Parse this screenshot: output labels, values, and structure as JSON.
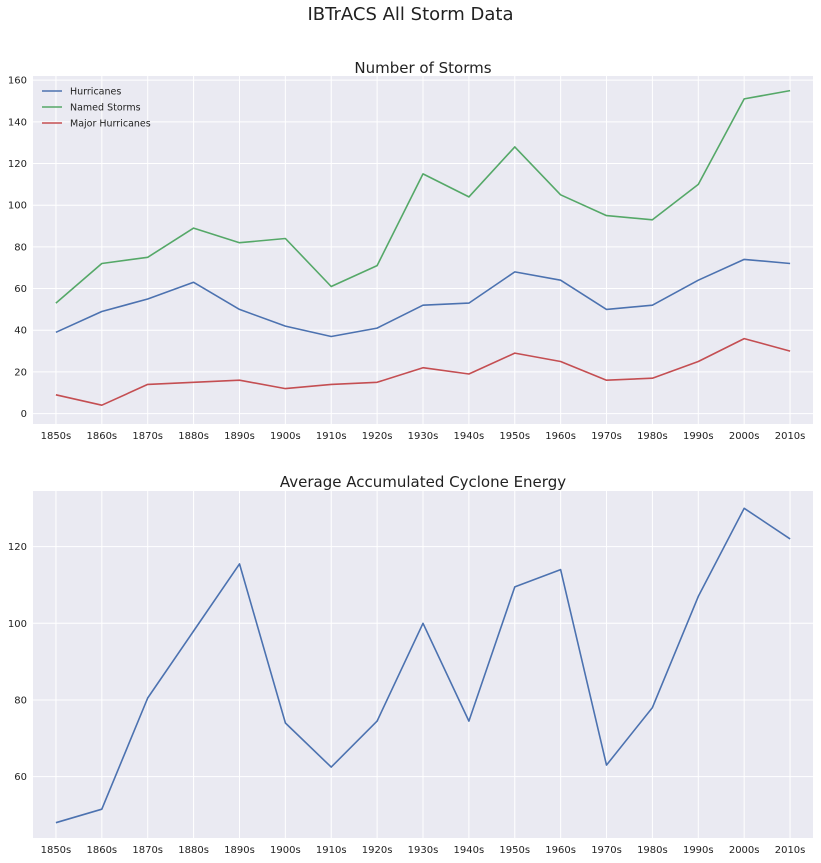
{
  "figure": {
    "title": "IBTrACS All Storm Data"
  },
  "colors": {
    "blue": "#4c72b0",
    "green": "#55a868",
    "red": "#c44e52",
    "background": "#eaeaf2",
    "grid": "#ffffff"
  },
  "chart_data": [
    {
      "type": "line",
      "title": "Number of Storms",
      "xlabel": "",
      "ylabel": "",
      "categories": [
        "1850s",
        "1860s",
        "1870s",
        "1880s",
        "1890s",
        "1900s",
        "1910s",
        "1920s",
        "1930s",
        "1940s",
        "1950s",
        "1960s",
        "1970s",
        "1980s",
        "1990s",
        "2000s",
        "2010s"
      ],
      "ylim": [
        -5,
        162
      ],
      "yticks": [
        0,
        20,
        40,
        60,
        80,
        100,
        120,
        140,
        160
      ],
      "grid": true,
      "legend_position": "top-left",
      "series": [
        {
          "name": "Hurricanes",
          "color": "#4c72b0",
          "values": [
            39,
            49,
            55,
            63,
            50,
            42,
            37,
            41,
            52,
            53,
            68,
            64,
            50,
            52,
            64,
            74,
            72
          ]
        },
        {
          "name": "Named Storms",
          "color": "#55a868",
          "values": [
            53,
            72,
            75,
            89,
            82,
            84,
            61,
            71,
            115,
            104,
            128,
            105,
            95,
            93,
            110,
            151,
            155
          ]
        },
        {
          "name": "Major Hurricanes",
          "color": "#c44e52",
          "values": [
            9,
            4,
            14,
            15,
            16,
            12,
            14,
            15,
            22,
            19,
            29,
            25,
            16,
            17,
            25,
            36,
            30
          ]
        }
      ]
    },
    {
      "type": "line",
      "title": "Average Accumulated Cyclone Energy",
      "xlabel": "",
      "ylabel": "",
      "categories": [
        "1850s",
        "1860s",
        "1870s",
        "1880s",
        "1890s",
        "1900s",
        "1910s",
        "1920s",
        "1930s",
        "1940s",
        "1950s",
        "1960s",
        "1970s",
        "1980s",
        "1990s",
        "2000s",
        "2010s"
      ],
      "ylim": [
        44,
        134.5
      ],
      "yticks": [
        60,
        80,
        100,
        120
      ],
      "grid": true,
      "series": [
        {
          "color": "#4c72b0",
          "values": [
            48,
            51.5,
            80.5,
            98,
            115.5,
            74,
            62.5,
            74.5,
            100,
            74.5,
            109.5,
            114,
            63,
            78,
            107,
            130,
            122
          ]
        }
      ]
    }
  ]
}
